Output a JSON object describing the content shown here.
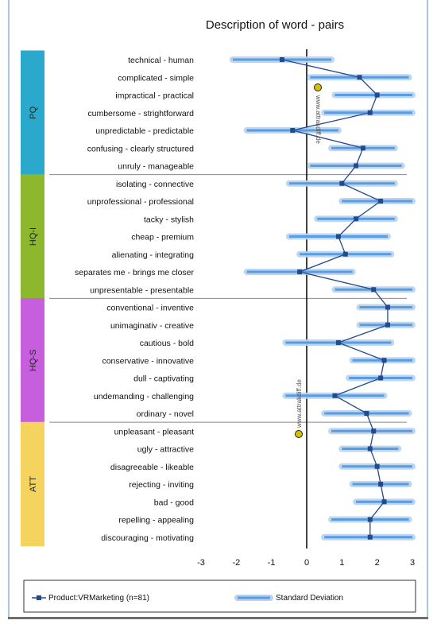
{
  "chart_data": {
    "type": "line",
    "title": "Description of word - pairs",
    "xlim": [
      -3,
      3
    ],
    "x_ticks": [
      "-3",
      "-2",
      "-1",
      "0",
      "1",
      "2",
      "3"
    ],
    "items": [
      {
        "label": "technical - human",
        "mean": -0.7,
        "sd": 1.4
      },
      {
        "label": "complicated - simple",
        "mean": 1.5,
        "sd": 1.4
      },
      {
        "label": "impractical - practical",
        "mean": 2.0,
        "sd": 1.2
      },
      {
        "label": "cumbersome - strightforward",
        "mean": 1.8,
        "sd": 1.3
      },
      {
        "label": "unpredictable - predictable",
        "mean": -0.4,
        "sd": 1.3
      },
      {
        "label": "confusing - clearly structured",
        "mean": 1.6,
        "sd": 0.9
      },
      {
        "label": "unruly - manageable",
        "mean": 1.4,
        "sd": 1.3
      },
      {
        "label": "isolating - connective",
        "mean": 1.0,
        "sd": 1.5
      },
      {
        "label": "unprofessional - professional",
        "mean": 2.1,
        "sd": 1.1
      },
      {
        "label": "tacky - stylish",
        "mean": 1.4,
        "sd": 1.1
      },
      {
        "label": "cheap - premium",
        "mean": 0.9,
        "sd": 1.4
      },
      {
        "label": "alienating - integrating",
        "mean": 1.1,
        "sd": 1.3
      },
      {
        "label": "separates me - brings me closer",
        "mean": -0.2,
        "sd": 1.5
      },
      {
        "label": "unpresentable - presentable",
        "mean": 1.9,
        "sd": 1.1
      },
      {
        "label": "conventional - inventive",
        "mean": 2.3,
        "sd": 0.8
      },
      {
        "label": "unimaginativ - creative",
        "mean": 2.3,
        "sd": 0.8
      },
      {
        "label": "cautious - bold",
        "mean": 0.9,
        "sd": 1.5
      },
      {
        "label": "conservative - innovative",
        "mean": 2.2,
        "sd": 0.9
      },
      {
        "label": "dull - captivating",
        "mean": 2.1,
        "sd": 0.9
      },
      {
        "label": "undemanding - challenging",
        "mean": 0.8,
        "sd": 1.4
      },
      {
        "label": "ordinary - novel",
        "mean": 1.7,
        "sd": 1.2
      },
      {
        "label": "unpleasant - pleasant",
        "mean": 1.9,
        "sd": 1.2
      },
      {
        "label": "ugly - attractive",
        "mean": 1.8,
        "sd": 0.8
      },
      {
        "label": "disagreeable - likeable",
        "mean": 2.0,
        "sd": 1.0
      },
      {
        "label": "rejecting - inviting",
        "mean": 2.1,
        "sd": 0.8
      },
      {
        "label": "bad - good",
        "mean": 2.2,
        "sd": 0.8
      },
      {
        "label": "repelling - appealing",
        "mean": 1.8,
        "sd": 1.1
      },
      {
        "label": "discouraging - motivating",
        "mean": 1.8,
        "sd": 1.3
      }
    ],
    "groups": [
      {
        "name": "PQ",
        "start": 0,
        "end": 6,
        "color": "#2ba9cc"
      },
      {
        "name": "HQ-I",
        "start": 7,
        "end": 13,
        "color": "#8db82e"
      },
      {
        "name": "HQ-S",
        "start": 14,
        "end": 20,
        "color": "#c75ede"
      },
      {
        "name": "ATT",
        "start": 21,
        "end": 27,
        "color": "#f4d35e"
      }
    ],
    "series": [
      {
        "name": "Product:VRMarketing (n=81)",
        "color": "#244a8c"
      }
    ],
    "legend": {
      "position": "bottom",
      "product_label": "Product:VRMarketing (n=81)",
      "sd_label": "Standard Deviation"
    },
    "colors": {
      "mean_line": "#244a8c",
      "sd_bar": "#5b9be0",
      "sd_glow": "#b8d3f0",
      "zero_line": "#000000"
    },
    "watermarks": [
      "www.attrakdiff.de",
      "www.attrakdiff.de"
    ]
  }
}
